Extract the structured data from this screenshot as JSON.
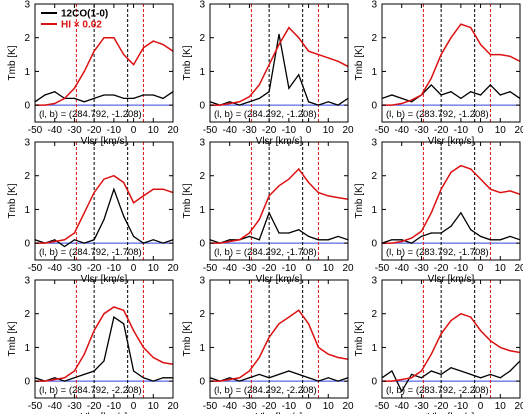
{
  "chart_data": {
    "type": "line",
    "layout": "3x3 grid of spectra panels",
    "xlabel": "Vlsr [km/s]",
    "ylabel": "Tmb [K]",
    "xlim": [
      -50,
      20
    ],
    "ylim": [
      -0.5,
      3
    ],
    "xticks": [
      -50,
      -40,
      -30,
      -20,
      -10,
      0,
      10,
      20
    ],
    "yticks": [
      0,
      1,
      2,
      3
    ],
    "grid": false,
    "legend": {
      "placement": "top-left of first panel",
      "entries": [
        {
          "label": "12CO(1-0)",
          "color": "#000000"
        },
        {
          "label": "HI × 0.02",
          "color": "#dd1111"
        }
      ]
    },
    "colors": {
      "co": "#000000",
      "hi": "#dd1111",
      "baseline": "#3344dd",
      "red_dashed": "#dd1111",
      "black_dashed": "#000000"
    },
    "vlines": {
      "red_dashed": [
        -29,
        5
      ],
      "black_dashed": [
        -20,
        -3
      ]
    },
    "x": [
      -50,
      -45,
      -40,
      -35,
      -30,
      -25,
      -20,
      -15,
      -10,
      -5,
      0,
      5,
      10,
      15,
      20
    ],
    "panels": [
      {
        "label": "(l, b) = (284.792, -1.208)",
        "series": [
          {
            "name": "12CO(1-0)",
            "values": [
              0.1,
              0.3,
              0.4,
              0.2,
              0.2,
              0.1,
              0.2,
              0.3,
              0.3,
              0.2,
              0.2,
              0.3,
              0.3,
              0.2,
              0.4
            ]
          },
          {
            "name": "HI × 0.02",
            "values": [
              0.0,
              0.0,
              0.05,
              0.2,
              0.5,
              1.0,
              1.6,
              2.0,
              2.0,
              1.5,
              1.2,
              1.7,
              1.9,
              1.8,
              1.6
            ]
          }
        ]
      },
      {
        "label": "(l, b) = (284.292, -1.208)",
        "series": [
          {
            "name": "12CO(1-0)",
            "values": [
              0.1,
              0.0,
              0.1,
              0.0,
              0.1,
              0.2,
              0.4,
              2.1,
              0.5,
              0.9,
              0.1,
              0.0,
              0.1,
              0.0,
              0.2
            ]
          },
          {
            "name": "HI × 0.02",
            "values": [
              0.0,
              0.0,
              0.05,
              0.1,
              0.25,
              0.6,
              1.2,
              1.8,
              2.3,
              2.0,
              1.6,
              1.5,
              1.4,
              1.3,
              1.15
            ]
          }
        ]
      },
      {
        "label": "(l, b) = (283.792, -1.208)",
        "series": [
          {
            "name": "12CO(1-0)",
            "values": [
              0.2,
              0.3,
              0.2,
              0.1,
              0.3,
              0.6,
              0.3,
              0.4,
              0.2,
              0.4,
              0.3,
              0.6,
              0.3,
              0.4,
              0.2
            ]
          },
          {
            "name": "HI × 0.02",
            "values": [
              0.0,
              0.0,
              0.05,
              0.15,
              0.3,
              0.8,
              1.5,
              2.0,
              2.4,
              2.3,
              1.8,
              1.5,
              1.5,
              1.45,
              1.3
            ]
          }
        ]
      },
      {
        "label": "(l, b) = (284.792, -1.708)",
        "series": [
          {
            "name": "12CO(1-0)",
            "values": [
              0.1,
              0.0,
              0.1,
              -0.1,
              0.1,
              0.0,
              0.1,
              0.7,
              1.6,
              0.8,
              0.2,
              0.0,
              0.1,
              0.0,
              0.1
            ]
          },
          {
            "name": "HI × 0.02",
            "values": [
              0.0,
              0.0,
              0.05,
              0.1,
              0.3,
              0.9,
              1.5,
              1.9,
              2.0,
              1.8,
              1.2,
              1.4,
              1.6,
              1.6,
              1.5
            ]
          }
        ]
      },
      {
        "label": "(l, b) = (284.292, -1.708)",
        "series": [
          {
            "name": "12CO(1-0)",
            "values": [
              0.1,
              0.0,
              0.1,
              0.1,
              0.2,
              0.1,
              0.9,
              0.3,
              0.3,
              0.4,
              0.2,
              0.1,
              0.1,
              0.2,
              0.1
            ]
          },
          {
            "name": "HI × 0.02",
            "values": [
              0.0,
              0.0,
              0.05,
              0.1,
              0.3,
              0.7,
              1.4,
              1.7,
              1.9,
              2.2,
              1.8,
              1.5,
              1.4,
              1.35,
              1.3
            ]
          }
        ]
      },
      {
        "label": "(l, b) = (283.792, -1.708)",
        "series": [
          {
            "name": "12CO(1-0)",
            "values": [
              0.0,
              0.1,
              0.1,
              0.0,
              0.2,
              0.3,
              0.3,
              0.5,
              0.9,
              0.4,
              0.2,
              0.1,
              0.1,
              0.2,
              0.1
            ]
          },
          {
            "name": "HI × 0.02",
            "values": [
              0.0,
              0.0,
              0.05,
              0.15,
              0.35,
              0.9,
              1.6,
              2.1,
              2.3,
              2.2,
              1.9,
              1.6,
              1.5,
              1.55,
              1.45
            ]
          }
        ]
      },
      {
        "label": "(l, b) = (284.792, -2.208)",
        "series": [
          {
            "name": "12CO(1-0)",
            "values": [
              0.1,
              0.0,
              0.1,
              0.0,
              0.1,
              0.2,
              0.3,
              0.6,
              1.9,
              1.7,
              0.3,
              0.1,
              0.0,
              0.1,
              0.1
            ]
          },
          {
            "name": "HI × 0.02",
            "values": [
              0.0,
              0.0,
              0.05,
              0.1,
              0.3,
              0.8,
              1.5,
              2.0,
              2.2,
              2.1,
              1.5,
              1.0,
              0.7,
              0.55,
              0.5
            ]
          }
        ]
      },
      {
        "label": "(l, b) = (284.292, -2.208)",
        "series": [
          {
            "name": "12CO(1-0)",
            "values": [
              0.1,
              0.0,
              0.1,
              0.0,
              0.1,
              0.2,
              0.1,
              0.2,
              0.3,
              0.2,
              0.1,
              0.0,
              0.1,
              0.0,
              0.1
            ]
          },
          {
            "name": "HI × 0.02",
            "values": [
              0.0,
              0.0,
              0.05,
              0.1,
              0.3,
              0.7,
              1.3,
              1.7,
              1.9,
              2.1,
              1.7,
              1.0,
              0.8,
              0.7,
              0.65
            ]
          }
        ]
      },
      {
        "label": "(l, b) = (283.792, -2.208)",
        "series": [
          {
            "name": "12CO(1-0)",
            "values": [
              0.1,
              0.3,
              -0.3,
              0.2,
              0.1,
              0.3,
              0.2,
              0.4,
              0.3,
              0.2,
              0.1,
              0.2,
              0.1,
              0.3,
              0.6
            ]
          },
          {
            "name": "HI × 0.02",
            "values": [
              0.0,
              0.0,
              0.05,
              0.1,
              0.3,
              0.8,
              1.4,
              1.8,
              2.0,
              1.9,
              1.5,
              1.2,
              1.0,
              0.9,
              0.85
            ]
          }
        ]
      }
    ]
  }
}
